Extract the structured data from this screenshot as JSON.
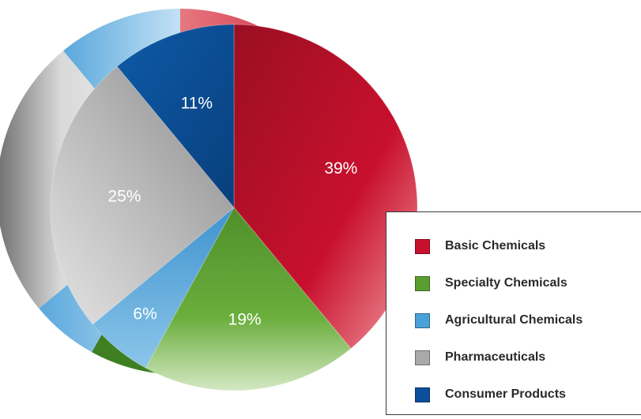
{
  "chart_data": {
    "type": "pie",
    "style": "3d",
    "slices": [
      {
        "label": "Basic Chemicals",
        "value": 39,
        "display": "39%",
        "color": "#c8102e"
      },
      {
        "label": "Specialty Chemicals",
        "value": 19,
        "display": "19%",
        "color": "#5a9e2f"
      },
      {
        "label": "Agricultural Chemicals",
        "value": 6,
        "display": "6%",
        "color": "#4aa0d8"
      },
      {
        "label": "Pharmaceuticals",
        "value": 25,
        "display": "25%",
        "color": "#a9a9a9"
      },
      {
        "label": "Consumer Products",
        "value": 11,
        "display": "11%",
        "color": "#0b4f9c"
      }
    ],
    "legend_position": "bottom-right"
  }
}
